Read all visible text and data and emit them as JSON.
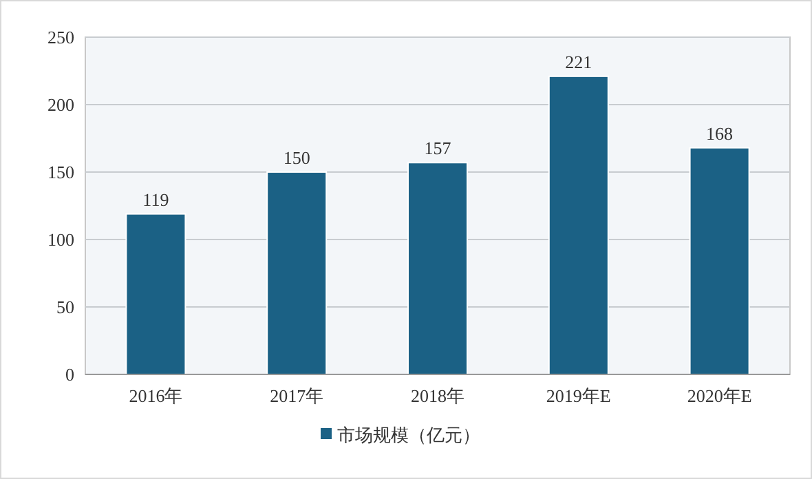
{
  "chart_data": {
    "type": "bar",
    "categories": [
      "2016年",
      "2017年",
      "2018年",
      "2019年E",
      "2020年E"
    ],
    "series": [
      {
        "name": "市场规模（亿元）",
        "color": "#1b6185",
        "values": [
          119,
          150,
          157,
          221,
          168
        ]
      }
    ],
    "ylim": [
      0,
      250
    ],
    "yticks": [
      0,
      50,
      100,
      150,
      200,
      250
    ],
    "grid": "y",
    "legend": "bottom",
    "data_labels": true
  }
}
